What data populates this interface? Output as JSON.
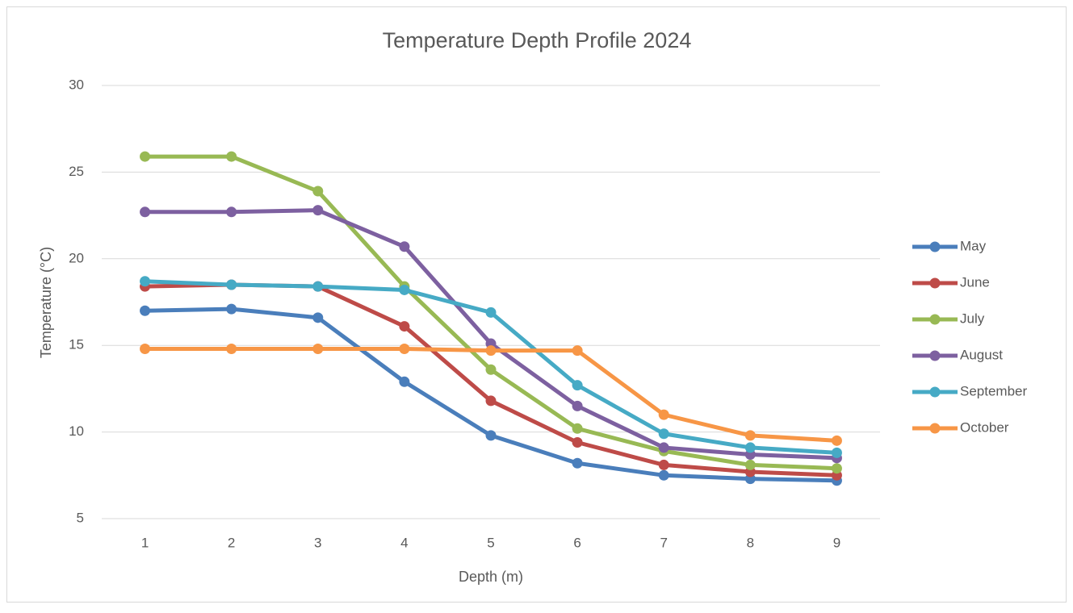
{
  "chart_data": {
    "type": "line",
    "title": "Temperature Depth Profile 2024",
    "x_label": "Depth (m)",
    "y_label": "Temperature (°C)",
    "categories": [
      "1",
      "2",
      "3",
      "4",
      "5",
      "6",
      "7",
      "8",
      "9"
    ],
    "series": [
      {
        "name": "May",
        "color": "#4a7ebb",
        "values": [
          17.0,
          17.1,
          16.6,
          12.9,
          9.8,
          8.2,
          7.5,
          7.3,
          7.2
        ]
      },
      {
        "name": "June",
        "color": "#be4b48",
        "values": [
          18.4,
          18.5,
          18.4,
          16.1,
          11.8,
          9.4,
          8.1,
          7.7,
          7.5
        ]
      },
      {
        "name": "July",
        "color": "#98b954",
        "values": [
          25.9,
          25.9,
          23.9,
          18.4,
          13.6,
          10.2,
          8.9,
          8.1,
          7.9
        ]
      },
      {
        "name": "August",
        "color": "#7d60a0",
        "values": [
          22.7,
          22.7,
          22.8,
          20.7,
          15.1,
          11.5,
          9.1,
          8.7,
          8.5
        ]
      },
      {
        "name": "September",
        "color": "#46aac5",
        "values": [
          18.7,
          18.5,
          18.4,
          18.2,
          16.9,
          12.7,
          9.9,
          9.1,
          8.8
        ]
      },
      {
        "name": "October",
        "color": "#f79646",
        "values": [
          14.8,
          14.8,
          14.8,
          14.8,
          14.7,
          14.7,
          11.0,
          9.8,
          9.5
        ]
      }
    ],
    "ylim": [
      5,
      30
    ],
    "yticks": [
      5,
      10,
      15,
      20,
      25,
      30
    ],
    "grid": true,
    "legend": "right"
  }
}
